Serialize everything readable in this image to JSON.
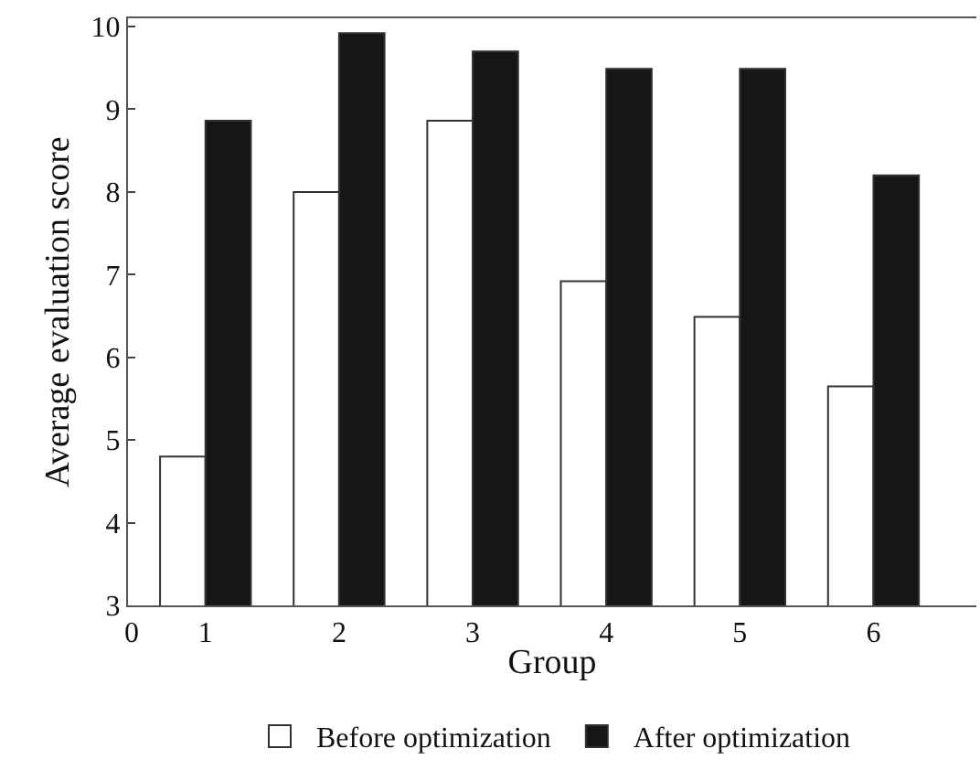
{
  "chart_data": {
    "type": "bar",
    "xlabel": "Group",
    "ylabel": "Average evaluation score",
    "categories": [
      "1",
      "2",
      "3",
      "4",
      "5",
      "6"
    ],
    "series": [
      {
        "name": "Before optimization",
        "color": "#ffffff",
        "values": [
          4.8,
          8.0,
          8.86,
          6.92,
          6.49,
          5.65
        ]
      },
      {
        "name": "After optimization",
        "color": "#161616",
        "values": [
          8.86,
          9.92,
          9.7,
          9.49,
          9.49,
          8.2
        ]
      }
    ],
    "ylim": [
      3,
      10.1
    ],
    "yticks": [
      3,
      4,
      5,
      6,
      7,
      8,
      9,
      10
    ],
    "legend": "bottom",
    "annotations": [
      "0"
    ]
  }
}
